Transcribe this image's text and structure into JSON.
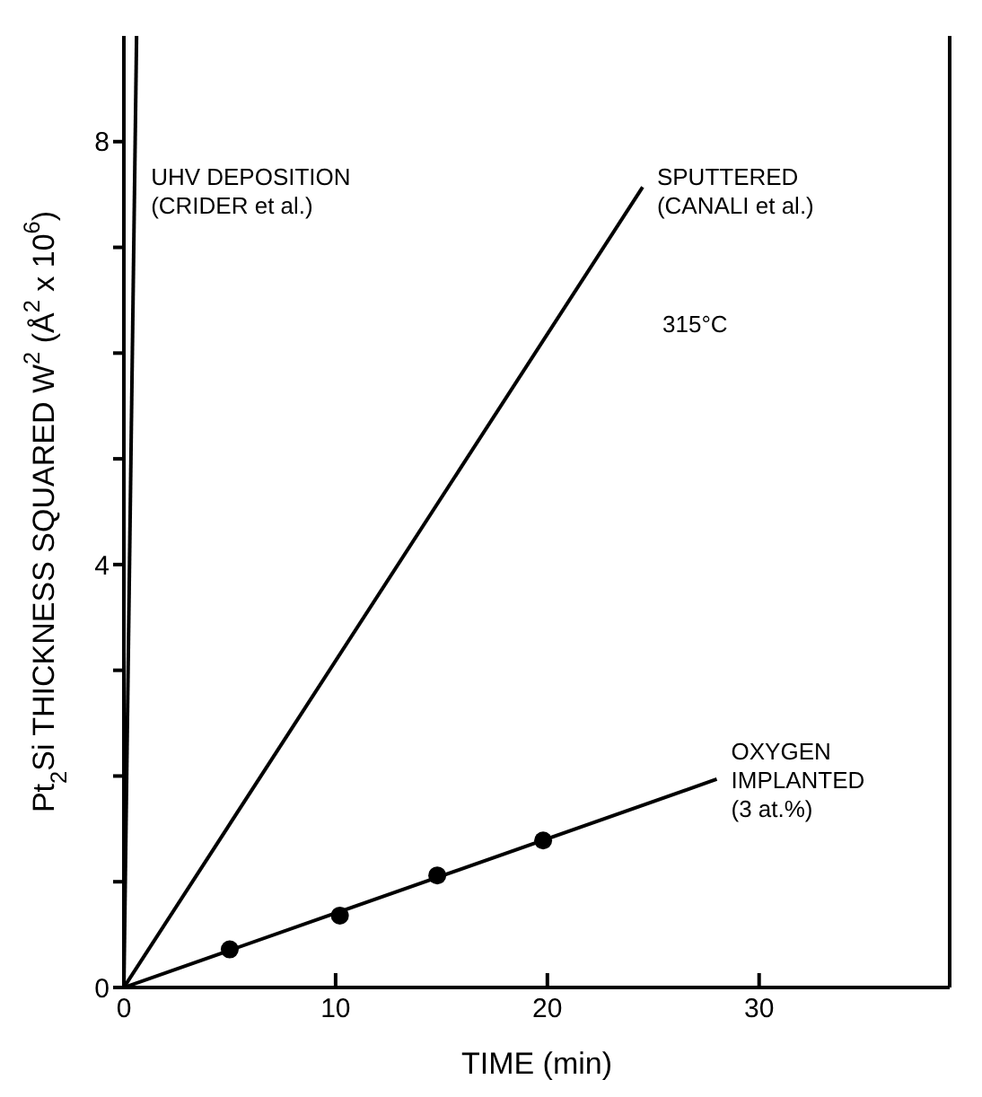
{
  "chart_data": {
    "type": "line",
    "xlabel": "TIME (min)",
    "ylabel": "Pt$_{2}$Si THICKNESS SQUARED W$^{2}$ (Å$^{2}$ x 10$^{6}$)",
    "xlim": [
      0,
      39
    ],
    "xticks": [
      0,
      10,
      20,
      30
    ],
    "ylim": [
      0,
      9
    ],
    "yticks": [
      0,
      {
        "value": 1,
        "label": null
      },
      {
        "value": 2,
        "label": null
      },
      {
        "value": 3,
        "label": null
      },
      4,
      {
        "value": 5,
        "label": null
      },
      {
        "value": 6,
        "label": null
      },
      {
        "value": 7,
        "label": null
      },
      8
    ],
    "marker": "none",
    "series": [
      {
        "name": "UHV DEPOSITION (CRIDER et al.)",
        "color": "#000000",
        "x": [
          0,
          0.6
        ],
        "values": [
          0,
          9
        ]
      },
      {
        "name": "SPUTTERED (CANALI et al.)",
        "color": "#000000",
        "x": [
          0,
          24.5
        ],
        "values": [
          0,
          7.57
        ]
      },
      {
        "name": "OXYGEN IMPLANTED (3 at.%)",
        "color": "#000000",
        "x": [
          0,
          28
        ],
        "values": [
          0,
          1.97
        ]
      },
      {
        "type": "scatter",
        "color": "#000000",
        "marker": "circle",
        "x": [
          5,
          10.2,
          14.8,
          19.8
        ],
        "values": [
          0.36,
          0.68,
          1.06,
          1.39
        ]
      }
    ],
    "annotations": [
      "315°C"
    ]
  }
}
